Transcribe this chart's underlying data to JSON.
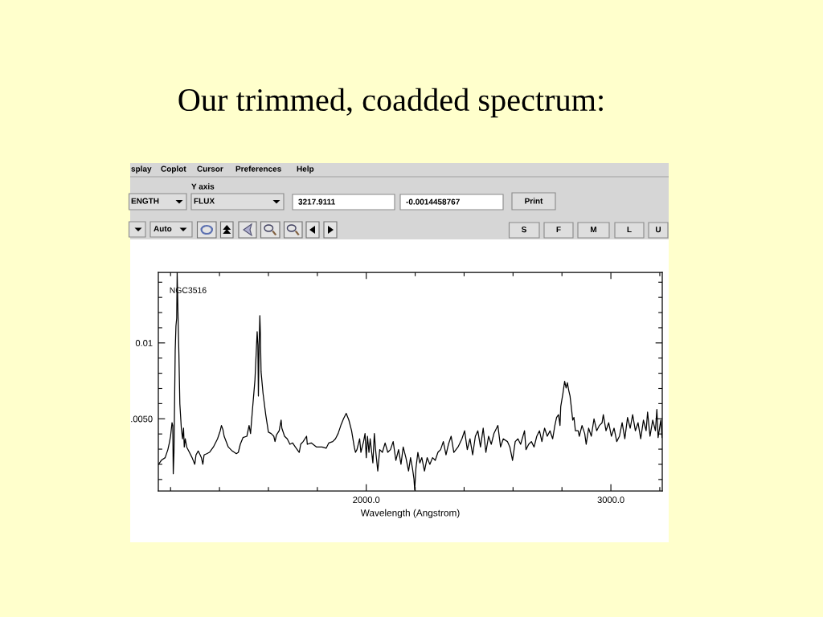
{
  "chart_data": {
    "type": "line",
    "title": "Our trimmed, coadded spectrum:",
    "xlabel": "Wavelength (Angstrom)",
    "annotations": [
      "NGC3516",
      "splay",
      "Coplot",
      "Cursor",
      "Preferences",
      "Help",
      "Y axis",
      "ENGTH",
      "FLUX",
      "3217.9111",
      "-0.0014458767",
      "Print",
      "Auto",
      "S",
      "F",
      "M",
      "L",
      "U"
    ],
    "xlim": [
      1150,
      3210
    ],
    "ylim": [
      0.00025,
      0.01465
    ],
    "xticks": [
      {
        "value": 1200,
        "label": null
      },
      {
        "value": 1400,
        "label": null
      },
      {
        "value": 1600,
        "label": null
      },
      {
        "value": 1800,
        "label": null
      },
      {
        "value": 2000,
        "label": "2000.0"
      },
      {
        "value": 2200,
        "label": null
      },
      {
        "value": 2400,
        "label": null
      },
      {
        "value": 2600,
        "label": null
      },
      {
        "value": 2800,
        "label": null
      },
      {
        "value": 3000,
        "label": "3000.0"
      },
      {
        "value": 3200,
        "label": null
      }
    ],
    "yticks": [
      {
        "value": 0.001,
        "label": null
      },
      {
        "value": 0.002,
        "label": null
      },
      {
        "value": 0.003,
        "label": null
      },
      {
        "value": 0.004,
        "label": null
      },
      {
        "value": 0.005,
        "label": ".0050"
      },
      {
        "value": 0.006,
        "label": null
      },
      {
        "value": 0.007,
        "label": null
      },
      {
        "value": 0.008,
        "label": null
      },
      {
        "value": 0.009,
        "label": null
      },
      0.01,
      {
        "value": 0.011,
        "label": null
      },
      {
        "value": 0.012,
        "label": null
      },
      {
        "value": 0.013,
        "label": null
      },
      {
        "value": 0.014,
        "label": null
      }
    ],
    "x": [
      1151,
      1162,
      1178,
      1189,
      1195,
      1200,
      1206,
      1209,
      1211,
      1214,
      1219,
      1222,
      1225,
      1227,
      1231,
      1234,
      1238,
      1244,
      1249,
      1253,
      1256,
      1260,
      1266,
      1277,
      1288,
      1299,
      1304,
      1313,
      1321,
      1326,
      1332,
      1337,
      1348,
      1359,
      1375,
      1392,
      1403,
      1408,
      1414,
      1419,
      1436,
      1452,
      1469,
      1477,
      1485,
      1496,
      1512,
      1521,
      1527,
      1534,
      1545,
      1554,
      1557,
      1559,
      1562,
      1565,
      1567,
      1570,
      1578,
      1589,
      1600,
      1611,
      1622,
      1627,
      1633,
      1644,
      1652,
      1655,
      1666,
      1677,
      1688,
      1699,
      1710,
      1726,
      1732,
      1742,
      1756,
      1759,
      1775,
      1797,
      1819,
      1836,
      1847,
      1863,
      1874,
      1885,
      1896,
      1907,
      1918,
      1929,
      1940,
      1951,
      1956,
      1962,
      1973,
      1978,
      1989,
      1995,
      2000,
      2005,
      2011,
      2016,
      2027,
      2033,
      2038,
      2047,
      2055,
      2066,
      2077,
      2088,
      2099,
      2110,
      2121,
      2132,
      2142,
      2151,
      2162,
      2173,
      2181,
      2189,
      2195,
      2198,
      2203,
      2211,
      2219,
      2227,
      2238,
      2249,
      2260,
      2271,
      2282,
      2293,
      2304,
      2315,
      2326,
      2336,
      2347,
      2358,
      2375,
      2391,
      2402,
      2413,
      2424,
      2435,
      2446,
      2456,
      2467,
      2478,
      2489,
      2500,
      2511,
      2522,
      2538,
      2549,
      2560,
      2577,
      2587,
      2598,
      2609,
      2620,
      2631,
      2647,
      2653,
      2664,
      2675,
      2686,
      2697,
      2708,
      2718,
      2729,
      2740,
      2751,
      2762,
      2771,
      2778,
      2786,
      2792,
      2795,
      2804,
      2811,
      2817,
      2822,
      2828,
      2833,
      2838,
      2844,
      2849,
      2855,
      2866,
      2871,
      2882,
      2893,
      2899,
      2909,
      2920,
      2931,
      2942,
      2953,
      2964,
      2969,
      2980,
      2991,
      3002,
      3013,
      3024,
      3035,
      3046,
      3057,
      3068,
      3079,
      3089,
      3100,
      3111,
      3122,
      3133,
      3144,
      3150,
      3160,
      3171,
      3182,
      3188,
      3193,
      3204,
      3209
    ],
    "series": [
      {
        "color": "#000000",
        "values": [
          0.002,
          0.00226,
          0.00244,
          0.00297,
          0.00341,
          0.00385,
          0.00474,
          0.00456,
          0.00138,
          0.00279,
          0.00951,
          0.0111,
          0.01163,
          0.01463,
          0.01145,
          0.00933,
          0.00597,
          0.00438,
          0.00368,
          0.00438,
          0.00314,
          0.00368,
          0.00314,
          0.00279,
          0.00244,
          0.002,
          0.00262,
          0.00288,
          0.00262,
          0.00244,
          0.002,
          0.00262,
          0.0027,
          0.00279,
          0.00314,
          0.00368,
          0.00421,
          0.00456,
          0.00429,
          0.00385,
          0.00314,
          0.00288,
          0.0027,
          0.00279,
          0.00332,
          0.00376,
          0.00385,
          0.00456,
          0.00403,
          0.00544,
          0.00756,
          0.01074,
          0.00986,
          0.0065,
          0.00986,
          0.0118,
          0.01074,
          0.00809,
          0.00668,
          0.00527,
          0.00412,
          0.00403,
          0.00385,
          0.0035,
          0.00394,
          0.00421,
          0.00491,
          0.00438,
          0.00385,
          0.00368,
          0.00332,
          0.00341,
          0.00314,
          0.00279,
          0.00332,
          0.0035,
          0.00385,
          0.00332,
          0.00341,
          0.00314,
          0.00314,
          0.00306,
          0.00341,
          0.0035,
          0.00368,
          0.00403,
          0.00456,
          0.005,
          0.00536,
          0.00491,
          0.00421,
          0.00314,
          0.00279,
          0.00297,
          0.00368,
          0.00279,
          0.0035,
          0.00403,
          0.00244,
          0.00385,
          0.00279,
          0.00368,
          0.00209,
          0.00403,
          0.00297,
          0.00156,
          0.00297,
          0.00279,
          0.00341,
          0.00279,
          0.00297,
          0.0035,
          0.00226,
          0.00297,
          0.002,
          0.00314,
          0.00244,
          0.00156,
          0.00244,
          0.00173,
          0.00103,
          0.0003,
          0.00173,
          0.00279,
          0.00209,
          0.00244,
          0.00156,
          0.00244,
          0.002,
          0.00244,
          0.00226,
          0.00279,
          0.00297,
          0.0035,
          0.00262,
          0.00332,
          0.00385,
          0.00279,
          0.00314,
          0.00368,
          0.00421,
          0.00297,
          0.00368,
          0.00262,
          0.00385,
          0.00421,
          0.00314,
          0.00438,
          0.00279,
          0.00385,
          0.00332,
          0.00403,
          0.00456,
          0.00314,
          0.00368,
          0.0035,
          0.00314,
          0.00226,
          0.0035,
          0.00368,
          0.00332,
          0.00421,
          0.00297,
          0.00332,
          0.0035,
          0.00314,
          0.00385,
          0.00421,
          0.0035,
          0.00438,
          0.00385,
          0.00421,
          0.00368,
          0.00456,
          0.00509,
          0.00527,
          0.00456,
          0.0058,
          0.00668,
          0.00747,
          0.00703,
          0.00738,
          0.00685,
          0.0065,
          0.0058,
          0.00491,
          0.00509,
          0.00421,
          0.00421,
          0.00385,
          0.00456,
          0.00403,
          0.00332,
          0.00438,
          0.00385,
          0.005,
          0.00421,
          0.00456,
          0.00474,
          0.00527,
          0.00421,
          0.00474,
          0.00385,
          0.00438,
          0.0035,
          0.00385,
          0.00474,
          0.00368,
          0.00509,
          0.00438,
          0.00527,
          0.00421,
          0.00474,
          0.00368,
          0.00491,
          0.00421,
          0.00544,
          0.00385,
          0.00491,
          0.00421,
          0.00562,
          0.00376,
          0.00491,
          0.00376
        ]
      }
    ]
  }
}
